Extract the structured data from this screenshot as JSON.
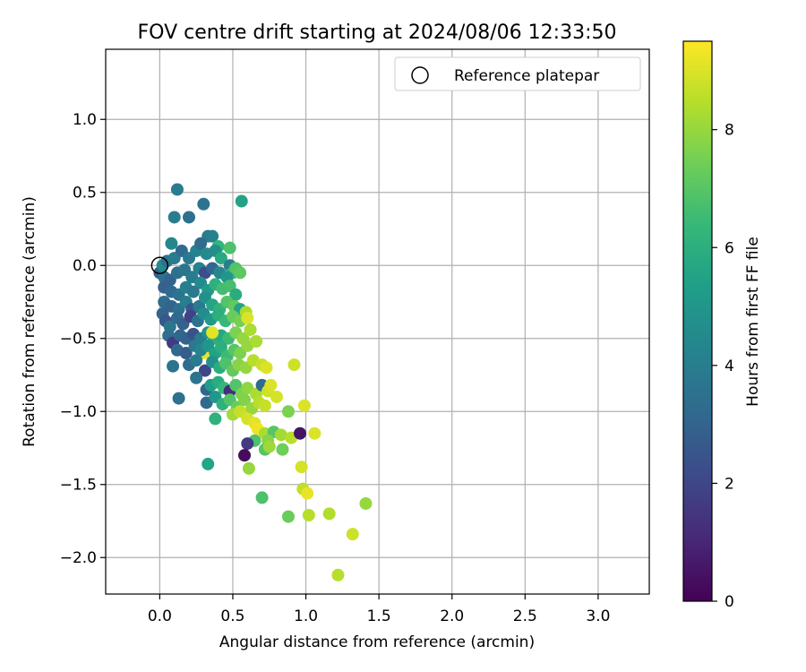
{
  "chart_data": {
    "type": "scatter",
    "title": "FOV centre drift starting at 2024/08/06 12:33:50",
    "xlabel": "Angular distance from reference (arcmin)",
    "ylabel": "Rotation from reference (arcmin)",
    "xlim": [
      -0.37,
      3.35
    ],
    "ylim": [
      -2.25,
      1.48
    ],
    "xticks": [
      0.0,
      0.5,
      1.0,
      1.5,
      2.0,
      2.5,
      3.0
    ],
    "xtick_labels": [
      "0.0",
      "0.5",
      "1.0",
      "1.5",
      "2.0",
      "2.5",
      "3.0"
    ],
    "yticks": [
      1.0,
      0.5,
      0.0,
      -0.5,
      -1.0,
      -1.5,
      -2.0
    ],
    "ytick_labels": [
      "1.0",
      "0.5",
      "0.0",
      "−0.5",
      "−1.0",
      "−1.5",
      "−2.0"
    ],
    "grid": true,
    "legend": {
      "placement": "top-right",
      "entries": [
        "Reference platepar"
      ]
    },
    "reference_point": {
      "x": 0.0,
      "y": 0.0,
      "label": "Reference platepar"
    },
    "colorbar": {
      "label": "Hours from first FF file",
      "colormap": "viridis",
      "range": [
        0,
        9.5
      ],
      "ticks": [
        0,
        2,
        4,
        6,
        8
      ],
      "tick_labels": [
        "0",
        "2",
        "4",
        "6",
        "8"
      ]
    },
    "points": [
      [
        0.12,
        0.52,
        3.9
      ],
      [
        0.56,
        0.44,
        5.5
      ],
      [
        0.3,
        0.42,
        3.6
      ],
      [
        0.1,
        0.33,
        4.0
      ],
      [
        0.2,
        0.33,
        3.5
      ],
      [
        0.33,
        0.2,
        3.9
      ],
      [
        0.36,
        0.2,
        4.1
      ],
      [
        0.4,
        0.13,
        6.2
      ],
      [
        0.48,
        0.12,
        6.8
      ],
      [
        0.08,
        0.15,
        4.4
      ],
      [
        0.0,
        -0.05,
        2.8
      ],
      [
        0.02,
        0.0,
        4.6
      ],
      [
        0.05,
        0.03,
        3.6
      ],
      [
        0.1,
        0.05,
        3.9
      ],
      [
        0.15,
        0.1,
        3.2
      ],
      [
        0.2,
        0.05,
        3.8
      ],
      [
        0.25,
        0.1,
        4.2
      ],
      [
        0.28,
        0.15,
        3.3
      ],
      [
        0.32,
        0.08,
        4.5
      ],
      [
        0.38,
        0.1,
        4.7
      ],
      [
        0.42,
        0.05,
        5.8
      ],
      [
        0.48,
        0.0,
        4.0
      ],
      [
        0.5,
        -0.05,
        6.5
      ],
      [
        0.52,
        -0.02,
        6.9
      ],
      [
        0.55,
        -0.05,
        7.1
      ],
      [
        0.03,
        -0.08,
        3.5
      ],
      [
        0.07,
        -0.1,
        3.0
      ],
      [
        0.12,
        -0.05,
        3.4
      ],
      [
        0.17,
        -0.03,
        3.7
      ],
      [
        0.22,
        -0.08,
        3.9
      ],
      [
        0.27,
        -0.02,
        4.2
      ],
      [
        0.31,
        -0.05,
        2.2
      ],
      [
        0.36,
        -0.02,
        3.1
      ],
      [
        0.41,
        -0.05,
        4.4
      ],
      [
        0.46,
        -0.08,
        5.0
      ],
      [
        0.03,
        -0.15,
        2.9
      ],
      [
        0.08,
        -0.18,
        3.2
      ],
      [
        0.13,
        -0.2,
        3.6
      ],
      [
        0.18,
        -0.15,
        4.0
      ],
      [
        0.23,
        -0.18,
        3.8
      ],
      [
        0.28,
        -0.12,
        4.5
      ],
      [
        0.33,
        -0.17,
        5.2
      ],
      [
        0.38,
        -0.13,
        6.1
      ],
      [
        0.43,
        -0.16,
        6.6
      ],
      [
        0.48,
        -0.14,
        6.7
      ],
      [
        0.52,
        -0.2,
        5.9
      ],
      [
        0.03,
        -0.25,
        3.3
      ],
      [
        0.08,
        -0.28,
        3.0
      ],
      [
        0.13,
        -0.3,
        3.5
      ],
      [
        0.18,
        -0.25,
        4.0
      ],
      [
        0.22,
        -0.3,
        2.6
      ],
      [
        0.27,
        -0.28,
        3.8
      ],
      [
        0.31,
        -0.22,
        4.8
      ],
      [
        0.36,
        -0.27,
        5.6
      ],
      [
        0.41,
        -0.3,
        6.2
      ],
      [
        0.46,
        -0.25,
        6.9
      ],
      [
        0.51,
        -0.28,
        7.2
      ],
      [
        0.55,
        -0.3,
        5.5
      ],
      [
        0.59,
        -0.32,
        8.3
      ],
      [
        0.02,
        -0.33,
        3.0
      ],
      [
        0.04,
        -0.38,
        2.6
      ],
      [
        0.07,
        -0.42,
        3.7
      ],
      [
        0.12,
        -0.36,
        3.2
      ],
      [
        0.16,
        -0.4,
        2.9
      ],
      [
        0.21,
        -0.35,
        1.9
      ],
      [
        0.26,
        -0.38,
        3.5
      ],
      [
        0.3,
        -0.33,
        4.6
      ],
      [
        0.35,
        -0.37,
        5.1
      ],
      [
        0.4,
        -0.34,
        6.0
      ],
      [
        0.45,
        -0.38,
        6.4
      ],
      [
        0.5,
        -0.35,
        7.3
      ],
      [
        0.55,
        -0.38,
        7.5
      ],
      [
        0.6,
        -0.36,
        9.0
      ],
      [
        0.06,
        -0.48,
        3.4
      ],
      [
        0.09,
        -0.53,
        1.6
      ],
      [
        0.14,
        -0.48,
        3.1
      ],
      [
        0.18,
        -0.5,
        3.0
      ],
      [
        0.23,
        -0.47,
        2.4
      ],
      [
        0.28,
        -0.5,
        3.9
      ],
      [
        0.33,
        -0.46,
        4.8
      ],
      [
        0.37,
        -0.5,
        6.0
      ],
      [
        0.42,
        -0.48,
        5.7
      ],
      [
        0.47,
        -0.5,
        6.5
      ],
      [
        0.52,
        -0.46,
        7.6
      ],
      [
        0.57,
        -0.5,
        8.0
      ],
      [
        0.62,
        -0.44,
        8.3
      ],
      [
        0.36,
        -0.46,
        9.1
      ],
      [
        0.3,
        -0.6,
        9.2
      ],
      [
        0.12,
        -0.58,
        3.2
      ],
      [
        0.18,
        -0.6,
        2.8
      ],
      [
        0.24,
        -0.55,
        3.8
      ],
      [
        0.28,
        -0.58,
        4.3
      ],
      [
        0.33,
        -0.55,
        5.0
      ],
      [
        0.38,
        -0.6,
        5.5
      ],
      [
        0.42,
        -0.56,
        6.0
      ],
      [
        0.46,
        -0.62,
        6.5
      ],
      [
        0.51,
        -0.58,
        7.0
      ],
      [
        0.55,
        -0.6,
        7.6
      ],
      [
        0.6,
        -0.55,
        8.0
      ],
      [
        0.66,
        -0.52,
        8.3
      ],
      [
        0.09,
        -0.69,
        3.6
      ],
      [
        0.2,
        -0.68,
        3.3
      ],
      [
        0.25,
        -0.65,
        3.9
      ],
      [
        0.31,
        -0.72,
        2.0
      ],
      [
        0.36,
        -0.66,
        4.8
      ],
      [
        0.41,
        -0.7,
        5.9
      ],
      [
        0.45,
        -0.67,
        6.8
      ],
      [
        0.5,
        -0.72,
        7.2
      ],
      [
        0.54,
        -0.68,
        7.8
      ],
      [
        0.59,
        -0.7,
        8.0
      ],
      [
        0.64,
        -0.65,
        8.5
      ],
      [
        0.7,
        -0.68,
        8.7
      ],
      [
        0.73,
        -0.7,
        9.0
      ],
      [
        0.92,
        -0.68,
        8.8
      ],
      [
        0.25,
        -0.77,
        3.6
      ],
      [
        0.32,
        -0.85,
        3.1
      ],
      [
        0.35,
        -0.82,
        5.3
      ],
      [
        0.4,
        -0.8,
        5.9
      ],
      [
        0.44,
        -0.84,
        6.3
      ],
      [
        0.48,
        -0.86,
        1.2
      ],
      [
        0.52,
        -0.82,
        6.9
      ],
      [
        0.56,
        -0.88,
        7.6
      ],
      [
        0.6,
        -0.84,
        7.9
      ],
      [
        0.66,
        -0.88,
        8.3
      ],
      [
        0.7,
        -0.82,
        3.2
      ],
      [
        0.74,
        -0.86,
        8.8
      ],
      [
        0.76,
        -0.82,
        9.0
      ],
      [
        0.13,
        -0.91,
        3.5
      ],
      [
        0.32,
        -0.94,
        3.2
      ],
      [
        0.38,
        -0.9,
        5.0
      ],
      [
        0.43,
        -0.95,
        6.1
      ],
      [
        0.48,
        -0.92,
        6.9
      ],
      [
        0.53,
        -0.97,
        7.3
      ],
      [
        0.58,
        -0.92,
        7.7
      ],
      [
        0.63,
        -0.98,
        8.0
      ],
      [
        0.68,
        -0.94,
        8.5
      ],
      [
        0.72,
        -0.96,
        8.7
      ],
      [
        0.8,
        -0.9,
        8.9
      ],
      [
        0.99,
        -0.96,
        9.0
      ],
      [
        0.38,
        -1.05,
        6.1
      ],
      [
        0.5,
        -1.02,
        8.2
      ],
      [
        0.55,
        -1.0,
        8.7
      ],
      [
        0.6,
        -1.05,
        8.9
      ],
      [
        0.65,
        -1.08,
        9.1
      ],
      [
        0.88,
        -1.0,
        7.6
      ],
      [
        0.67,
        -1.12,
        9.3
      ],
      [
        0.72,
        -1.15,
        8.3
      ],
      [
        0.78,
        -1.14,
        7.0
      ],
      [
        0.83,
        -1.16,
        8.2
      ],
      [
        0.9,
        -1.18,
        8.5
      ],
      [
        1.06,
        -1.15,
        9.0
      ],
      [
        0.96,
        -1.15,
        0.5
      ],
      [
        0.74,
        -1.2,
        7.8
      ],
      [
        0.65,
        -1.2,
        6.8
      ],
      [
        0.6,
        -1.22,
        1.6
      ],
      [
        0.72,
        -1.26,
        7.0
      ],
      [
        0.75,
        -1.24,
        8.1
      ],
      [
        0.84,
        -1.26,
        7.4
      ],
      [
        0.58,
        -1.3,
        0.3
      ],
      [
        0.33,
        -1.36,
        5.6
      ],
      [
        0.61,
        -1.39,
        8.0
      ],
      [
        0.97,
        -1.38,
        8.9
      ],
      [
        0.7,
        -1.59,
        6.8
      ],
      [
        0.98,
        -1.53,
        8.6
      ],
      [
        1.01,
        -1.56,
        9.2
      ],
      [
        0.88,
        -1.72,
        7.3
      ],
      [
        1.02,
        -1.71,
        8.5
      ],
      [
        1.16,
        -1.7,
        8.4
      ],
      [
        1.41,
        -1.63,
        8.0
      ],
      [
        1.32,
        -1.84,
        8.8
      ],
      [
        1.22,
        -2.12,
        8.5
      ]
    ]
  }
}
